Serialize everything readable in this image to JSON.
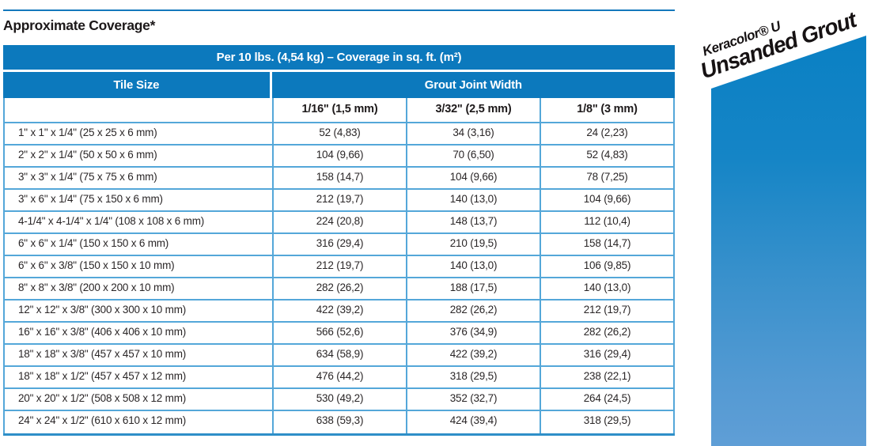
{
  "page": {
    "title": "Approximate Coverage*"
  },
  "table": {
    "span_header": "Per 10 lbs. (4,54 kg) – Coverage in sq. ft. (m²)",
    "tile_size_header": "Tile Size",
    "grout_joint_header": "Grout Joint Width",
    "sub_headers": [
      "1/16\" (1,5 mm)",
      "3/32\" (2,5 mm)",
      "1/8\" (3 mm)"
    ],
    "rows": [
      [
        "1\" x 1\" x 1/4\" (25 x 25 x 6 mm)",
        "52 (4,83)",
        "34 (3,16)",
        "24 (2,23)"
      ],
      [
        "2\" x 2\" x 1/4\" (50 x 50 x 6 mm)",
        "104 (9,66)",
        "70 (6,50)",
        "52 (4,83)"
      ],
      [
        "3\" x 3\" x 1/4\" (75 x 75 x 6 mm)",
        "158 (14,7)",
        "104 (9,66)",
        "78 (7,25)"
      ],
      [
        "3\" x 6\" x 1/4\" (75 x 150 x 6 mm)",
        "212 (19,7)",
        "140 (13,0)",
        "104 (9,66)"
      ],
      [
        "4-1/4\" x 4-1/4\" x 1/4\" (108 x 108 x 6 mm)",
        "224 (20,8)",
        "148 (13,7)",
        "112 (10,4)"
      ],
      [
        "6\" x 6\" x 1/4\" (150 x 150 x 6 mm)",
        "316 (29,4)",
        "210 (19,5)",
        "158 (14,7)"
      ],
      [
        "6\" x 6\" x 3/8\" (150 x 150 x 10 mm)",
        "212 (19,7)",
        "140 (13,0)",
        "106 (9,85)"
      ],
      [
        "8\" x 8\" x 3/8\" (200 x 200 x 10 mm)",
        "282 (26,2)",
        "188 (17,5)",
        "140 (13,0)"
      ],
      [
        "12\" x 12\" x 3/8\" (300 x 300 x 10 mm)",
        "422 (39,2)",
        "282 (26,2)",
        "212 (19,7)"
      ],
      [
        "16\" x 16\" x 3/8\" (406 x 406 x 10 mm)",
        "566 (52,6)",
        "376 (34,9)",
        "282 (26,2)"
      ],
      [
        "18\" x 18\" x 3/8\" (457 x 457 x 10 mm)",
        "634 (58,9)",
        "422 (39,2)",
        "316 (29,4)"
      ],
      [
        "18\" x 18\" x 1/2\" (457 x 457 x 12 mm)",
        "476 (44,2)",
        "318 (29,5)",
        "238 (22,1)"
      ],
      [
        "20\" x 20\" x 1/2\" (508 x 508 x 12 mm)",
        "530 (49,2)",
        "352 (32,7)",
        "264 (24,5)"
      ],
      [
        "24\" x 24\" x 1/2\" (610 x 610 x 12 mm)",
        "638 (59,3)",
        "424 (39,4)",
        "318 (29,5)"
      ]
    ]
  },
  "banner": {
    "brand": "Keracolor® U",
    "product": "Unsanded Grout"
  },
  "colors": {
    "header_blue": "#0c79bd",
    "divider_blue": "#54a7d9",
    "bottom_border_blue": "#2e8fc8",
    "panel_gradient_top": "#0a80c4",
    "panel_gradient_bottom": "#5f9ed6"
  }
}
